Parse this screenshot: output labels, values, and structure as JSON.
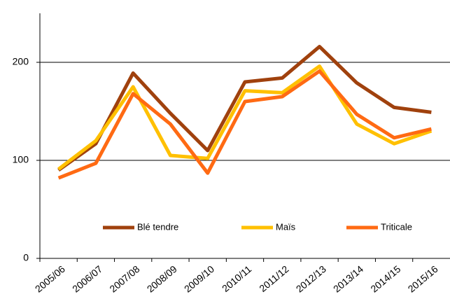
{
  "chart_data": {
    "type": "line",
    "categories": [
      "2005/06",
      "2006/07",
      "2007/08",
      "2008/09",
      "2009/10",
      "2010/11",
      "2011/12",
      "2012/13",
      "2013/14",
      "2014/15",
      "2015/16"
    ],
    "series": [
      {
        "name": "Blé tendre",
        "color": "#a0410d",
        "values": [
          90,
          117,
          189,
          148,
          110,
          180,
          184,
          216,
          179,
          154,
          149
        ]
      },
      {
        "name": "Maïs",
        "color": "#ffc000",
        "values": [
          91,
          120,
          175,
          105,
          102,
          171,
          169,
          196,
          137,
          117,
          130
        ]
      },
      {
        "name": "Triticale",
        "color": "#ff6a13",
        "values": [
          82,
          97,
          168,
          137,
          87,
          160,
          165,
          191,
          147,
          123,
          132
        ]
      }
    ],
    "ylim": [
      0,
      250
    ],
    "yticks": [
      0,
      100,
      200
    ],
    "grid": true
  }
}
